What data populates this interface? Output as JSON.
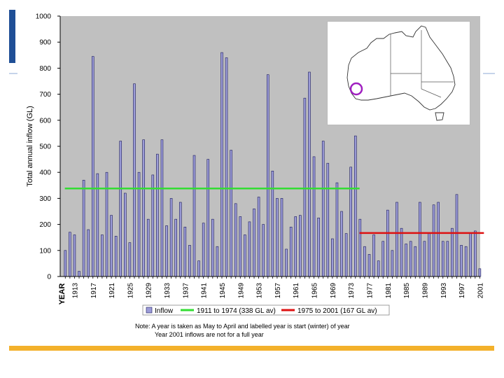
{
  "chart_data": {
    "type": "bar",
    "ylabel": "Total annual inflow (GL)",
    "ylim": [
      0,
      1000
    ],
    "yticks": [
      0,
      100,
      200,
      300,
      400,
      500,
      600,
      700,
      800,
      900,
      1000
    ],
    "x_axis_title": "YEAR",
    "xtick_labels": [
      "1913",
      "1917",
      "1921",
      "1925",
      "1929",
      "1933",
      "1937",
      "1941",
      "1945",
      "1949",
      "1953",
      "1957",
      "1961",
      "1965",
      "1969",
      "1973",
      "1977",
      "1981",
      "1985",
      "1989",
      "1993",
      "1997",
      "2001"
    ],
    "years": [
      1911,
      1912,
      1913,
      1914,
      1915,
      1916,
      1917,
      1918,
      1919,
      1920,
      1921,
      1922,
      1923,
      1924,
      1925,
      1926,
      1927,
      1928,
      1929,
      1930,
      1931,
      1932,
      1933,
      1934,
      1935,
      1936,
      1937,
      1938,
      1939,
      1940,
      1941,
      1942,
      1943,
      1944,
      1945,
      1946,
      1947,
      1948,
      1949,
      1950,
      1951,
      1952,
      1953,
      1954,
      1955,
      1956,
      1957,
      1958,
      1959,
      1960,
      1961,
      1962,
      1963,
      1964,
      1965,
      1966,
      1967,
      1968,
      1969,
      1970,
      1971,
      1972,
      1973,
      1974,
      1975,
      1976,
      1977,
      1978,
      1979,
      1980,
      1981,
      1982,
      1983,
      1984,
      1985,
      1986,
      1987,
      1988,
      1989,
      1990,
      1991,
      1992,
      1993,
      1994,
      1995,
      1996,
      1997,
      1998,
      1999,
      2000,
      2001
    ],
    "series": [
      {
        "name": "Inflow",
        "color": "#9c9cd8",
        "values": [
          100,
          170,
          160,
          20,
          370,
          180,
          845,
          395,
          160,
          400,
          235,
          155,
          520,
          320,
          130,
          740,
          400,
          525,
          220,
          390,
          470,
          525,
          195,
          300,
          220,
          285,
          190,
          120,
          465,
          60,
          205,
          450,
          220,
          115,
          860,
          840,
          485,
          280,
          230,
          160,
          210,
          260,
          305,
          200,
          775,
          405,
          300,
          300,
          105,
          190,
          230,
          235,
          685,
          785,
          460,
          225,
          520,
          435,
          145,
          360,
          250,
          165,
          420,
          540,
          220,
          115,
          85,
          160,
          60,
          135,
          255,
          100,
          285,
          185,
          125,
          135,
          115,
          285,
          135,
          165,
          275,
          285,
          135,
          135,
          185,
          315,
          120,
          115,
          165,
          175,
          30
        ]
      },
      {
        "name": "1911 to 1974 (338 GL av)",
        "color": "#33dd33",
        "type": "line",
        "x": [
          1911,
          1974
        ],
        "y": [
          338,
          338
        ]
      },
      {
        "name": "1975 to 2001 (167 GL av)",
        "color": "#dd1111",
        "type": "line",
        "x": [
          1975,
          2001
        ],
        "y": [
          167,
          167
        ]
      }
    ],
    "grid": false,
    "legend_position": "bottom"
  },
  "note": {
    "line1": "Note:   A year is taken as May to April and labelled year is start (winter) of year",
    "line2": "Year 2001 inflows are not for a full year"
  },
  "colors": {
    "plot_background": "#c0c0c0",
    "bar_fill": "#9c9cd8",
    "accent_blue": "#1f4f96",
    "accent_gold": "#f3b12b",
    "marker_purple": "#a020c0"
  }
}
